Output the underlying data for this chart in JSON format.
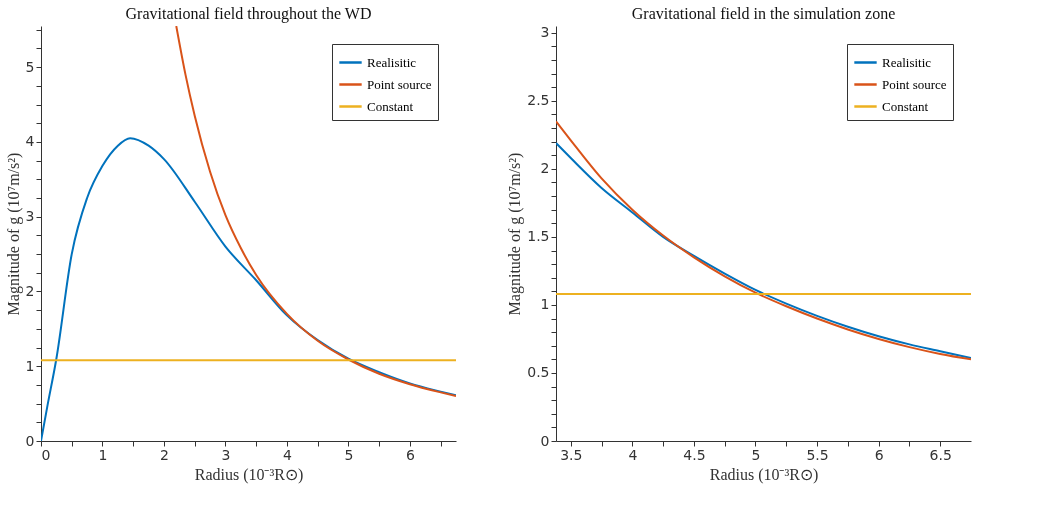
{
  "chart_data": [
    {
      "type": "line",
      "title": "Gravitational field throughout the WD",
      "xlabel": "Radius (10⁻³R⊙)",
      "ylabel": "Magnitude of g (10⁷m/s²)",
      "legend": "top right",
      "grid": false,
      "marker": "none",
      "line_style": "solid",
      "xlim": [
        0,
        6.75
      ],
      "ylim": [
        0,
        5.55
      ],
      "xticks": [
        0,
        {
          "value": 0.5,
          "label": null
        },
        1,
        {
          "value": 1.5,
          "label": null
        },
        2,
        {
          "value": 2.5,
          "label": null
        },
        3,
        {
          "value": 3.5,
          "label": null
        },
        4,
        {
          "value": 4.5,
          "label": null
        },
        5,
        {
          "value": 5.5,
          "label": null
        },
        6,
        {
          "value": 6.5,
          "label": null
        }
      ],
      "yticks": [
        0,
        {
          "value": 0.25,
          "label": null
        },
        {
          "value": 0.5,
          "label": null
        },
        {
          "value": 0.75,
          "label": null
        },
        1,
        {
          "value": 1.25,
          "label": null
        },
        {
          "value": 1.5,
          "label": null
        },
        {
          "value": 1.75,
          "label": null
        },
        2,
        {
          "value": 2.25,
          "label": null
        },
        {
          "value": 2.5,
          "label": null
        },
        {
          "value": 2.75,
          "label": null
        },
        3,
        {
          "value": 3.25,
          "label": null
        },
        {
          "value": 3.5,
          "label": null
        },
        {
          "value": 3.75,
          "label": null
        },
        4,
        {
          "value": 4.25,
          "label": null
        },
        {
          "value": 4.5,
          "label": null
        },
        {
          "value": 4.75,
          "label": null
        },
        5,
        {
          "value": 5.25,
          "label": null
        },
        {
          "value": 5.5,
          "label": null
        }
      ],
      "series": [
        {
          "name": "Realisitic",
          "color": "#0072bd",
          "x": [
            0,
            0.1,
            0.25,
            0.5,
            0.75,
            1.0,
            1.25,
            1.45,
            1.75,
            2.0,
            2.5,
            3.0,
            3.5,
            4.0,
            4.5,
            5.0,
            5.5,
            6.0,
            6.5,
            6.75
          ],
          "values": [
            0,
            0.45,
            1.1,
            2.5,
            3.25,
            3.68,
            3.95,
            4.05,
            3.95,
            3.77,
            3.2,
            2.6,
            2.15,
            1.68,
            1.35,
            1.1,
            0.92,
            0.77,
            0.66,
            0.61
          ]
        },
        {
          "name": "Point source",
          "color": "#d95319",
          "x": [
            2.2,
            2.35,
            2.5,
            2.75,
            3.0,
            3.25,
            3.5,
            4.0,
            4.5,
            5.0,
            5.5,
            6.0,
            6.5,
            6.75
          ],
          "values": [
            5.55,
            4.9,
            4.35,
            3.6,
            3.02,
            2.58,
            2.22,
            1.7,
            1.34,
            1.09,
            0.9,
            0.76,
            0.65,
            0.6
          ]
        },
        {
          "name": "Constant",
          "color": "#edb120",
          "x": [
            0,
            6.75
          ],
          "values": [
            1.08,
            1.08
          ]
        }
      ]
    },
    {
      "type": "line",
      "title": "Gravitational field in the simulation zone",
      "xlabel": "Radius (10⁻³R⊙)",
      "ylabel": "Magnitude of g (10⁷m/s²)",
      "legend": "top right",
      "grid": false,
      "marker": "none",
      "line_style": "solid",
      "xlim": [
        3.38,
        6.75
      ],
      "ylim": [
        0,
        3.05
      ],
      "xticks": [
        3.5,
        {
          "value": 3.75,
          "label": null
        },
        4,
        {
          "value": 4.25,
          "label": null
        },
        4.5,
        {
          "value": 4.75,
          "label": null
        },
        5,
        {
          "value": 5.25,
          "label": null
        },
        5.5,
        {
          "value": 5.75,
          "label": null
        },
        6,
        {
          "value": 6.25,
          "label": null
        },
        6.5
      ],
      "yticks": [
        0,
        {
          "value": 0.1,
          "label": null
        },
        {
          "value": 0.2,
          "label": null
        },
        {
          "value": 0.3,
          "label": null
        },
        {
          "value": 0.4,
          "label": null
        },
        0.5,
        {
          "value": 0.6,
          "label": null
        },
        {
          "value": 0.7,
          "label": null
        },
        {
          "value": 0.8,
          "label": null
        },
        {
          "value": 0.9,
          "label": null
        },
        1,
        {
          "value": 1.1,
          "label": null
        },
        {
          "value": 1.2,
          "label": null
        },
        {
          "value": 1.3,
          "label": null
        },
        {
          "value": 1.4,
          "label": null
        },
        1.5,
        {
          "value": 1.6,
          "label": null
        },
        {
          "value": 1.7,
          "label": null
        },
        {
          "value": 1.8,
          "label": null
        },
        {
          "value": 1.9,
          "label": null
        },
        2,
        {
          "value": 2.1,
          "label": null
        },
        {
          "value": 2.2,
          "label": null
        },
        {
          "value": 2.3,
          "label": null
        },
        {
          "value": 2.4,
          "label": null
        },
        2.5,
        {
          "value": 2.6,
          "label": null
        },
        {
          "value": 2.7,
          "label": null
        },
        {
          "value": 2.8,
          "label": null
        },
        {
          "value": 2.9,
          "label": null
        },
        3
      ],
      "series": [
        {
          "name": "Realisitic",
          "color": "#0072bd",
          "x": [
            3.38,
            3.5,
            3.75,
            4.0,
            4.25,
            4.5,
            4.75,
            5.0,
            5.25,
            5.5,
            5.75,
            6.0,
            6.25,
            6.5,
            6.75
          ],
          "values": [
            2.19,
            2.08,
            1.86,
            1.68,
            1.5,
            1.36,
            1.23,
            1.11,
            1.01,
            0.92,
            0.84,
            0.77,
            0.71,
            0.66,
            0.61
          ]
        },
        {
          "name": "Point source",
          "color": "#d95319",
          "x": [
            3.38,
            3.5,
            3.75,
            4.0,
            4.25,
            4.5,
            4.75,
            5.0,
            5.25,
            5.5,
            5.75,
            6.0,
            6.25,
            6.5,
            6.75
          ],
          "values": [
            2.35,
            2.21,
            1.93,
            1.7,
            1.51,
            1.35,
            1.21,
            1.09,
            0.99,
            0.9,
            0.82,
            0.75,
            0.69,
            0.64,
            0.6
          ]
        },
        {
          "name": "Constant",
          "color": "#edb120",
          "x": [
            3.38,
            6.75
          ],
          "values": [
            1.08,
            1.08
          ]
        }
      ]
    }
  ]
}
